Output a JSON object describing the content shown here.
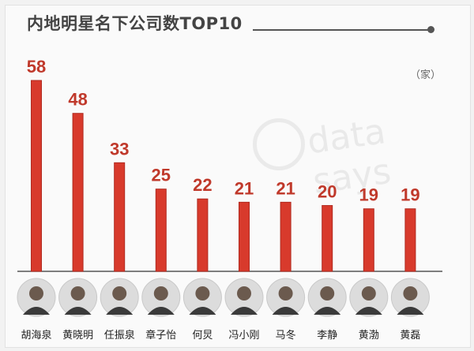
{
  "title": "内地明星名下公司数TOP10",
  "unit_label": "（家）",
  "watermark": "data says",
  "colors": {
    "bar": "#d83a2c",
    "bar_edge": "#b02a20",
    "value": "#c0392b",
    "axis": "#555555"
  },
  "chart_data": {
    "type": "bar",
    "categories": [
      "胡海泉",
      "黄晓明",
      "任振泉",
      "章子怡",
      "何炅",
      "冯小刚",
      "马冬",
      "李静",
      "黄渤",
      "黄磊"
    ],
    "values": [
      58,
      48,
      33,
      25,
      22,
      21,
      21,
      20,
      19,
      19
    ],
    "title": "内地明星名下公司数TOP10",
    "ylabel": "家",
    "ylim": [
      0,
      60
    ],
    "data_labels": true,
    "grid": false
  }
}
